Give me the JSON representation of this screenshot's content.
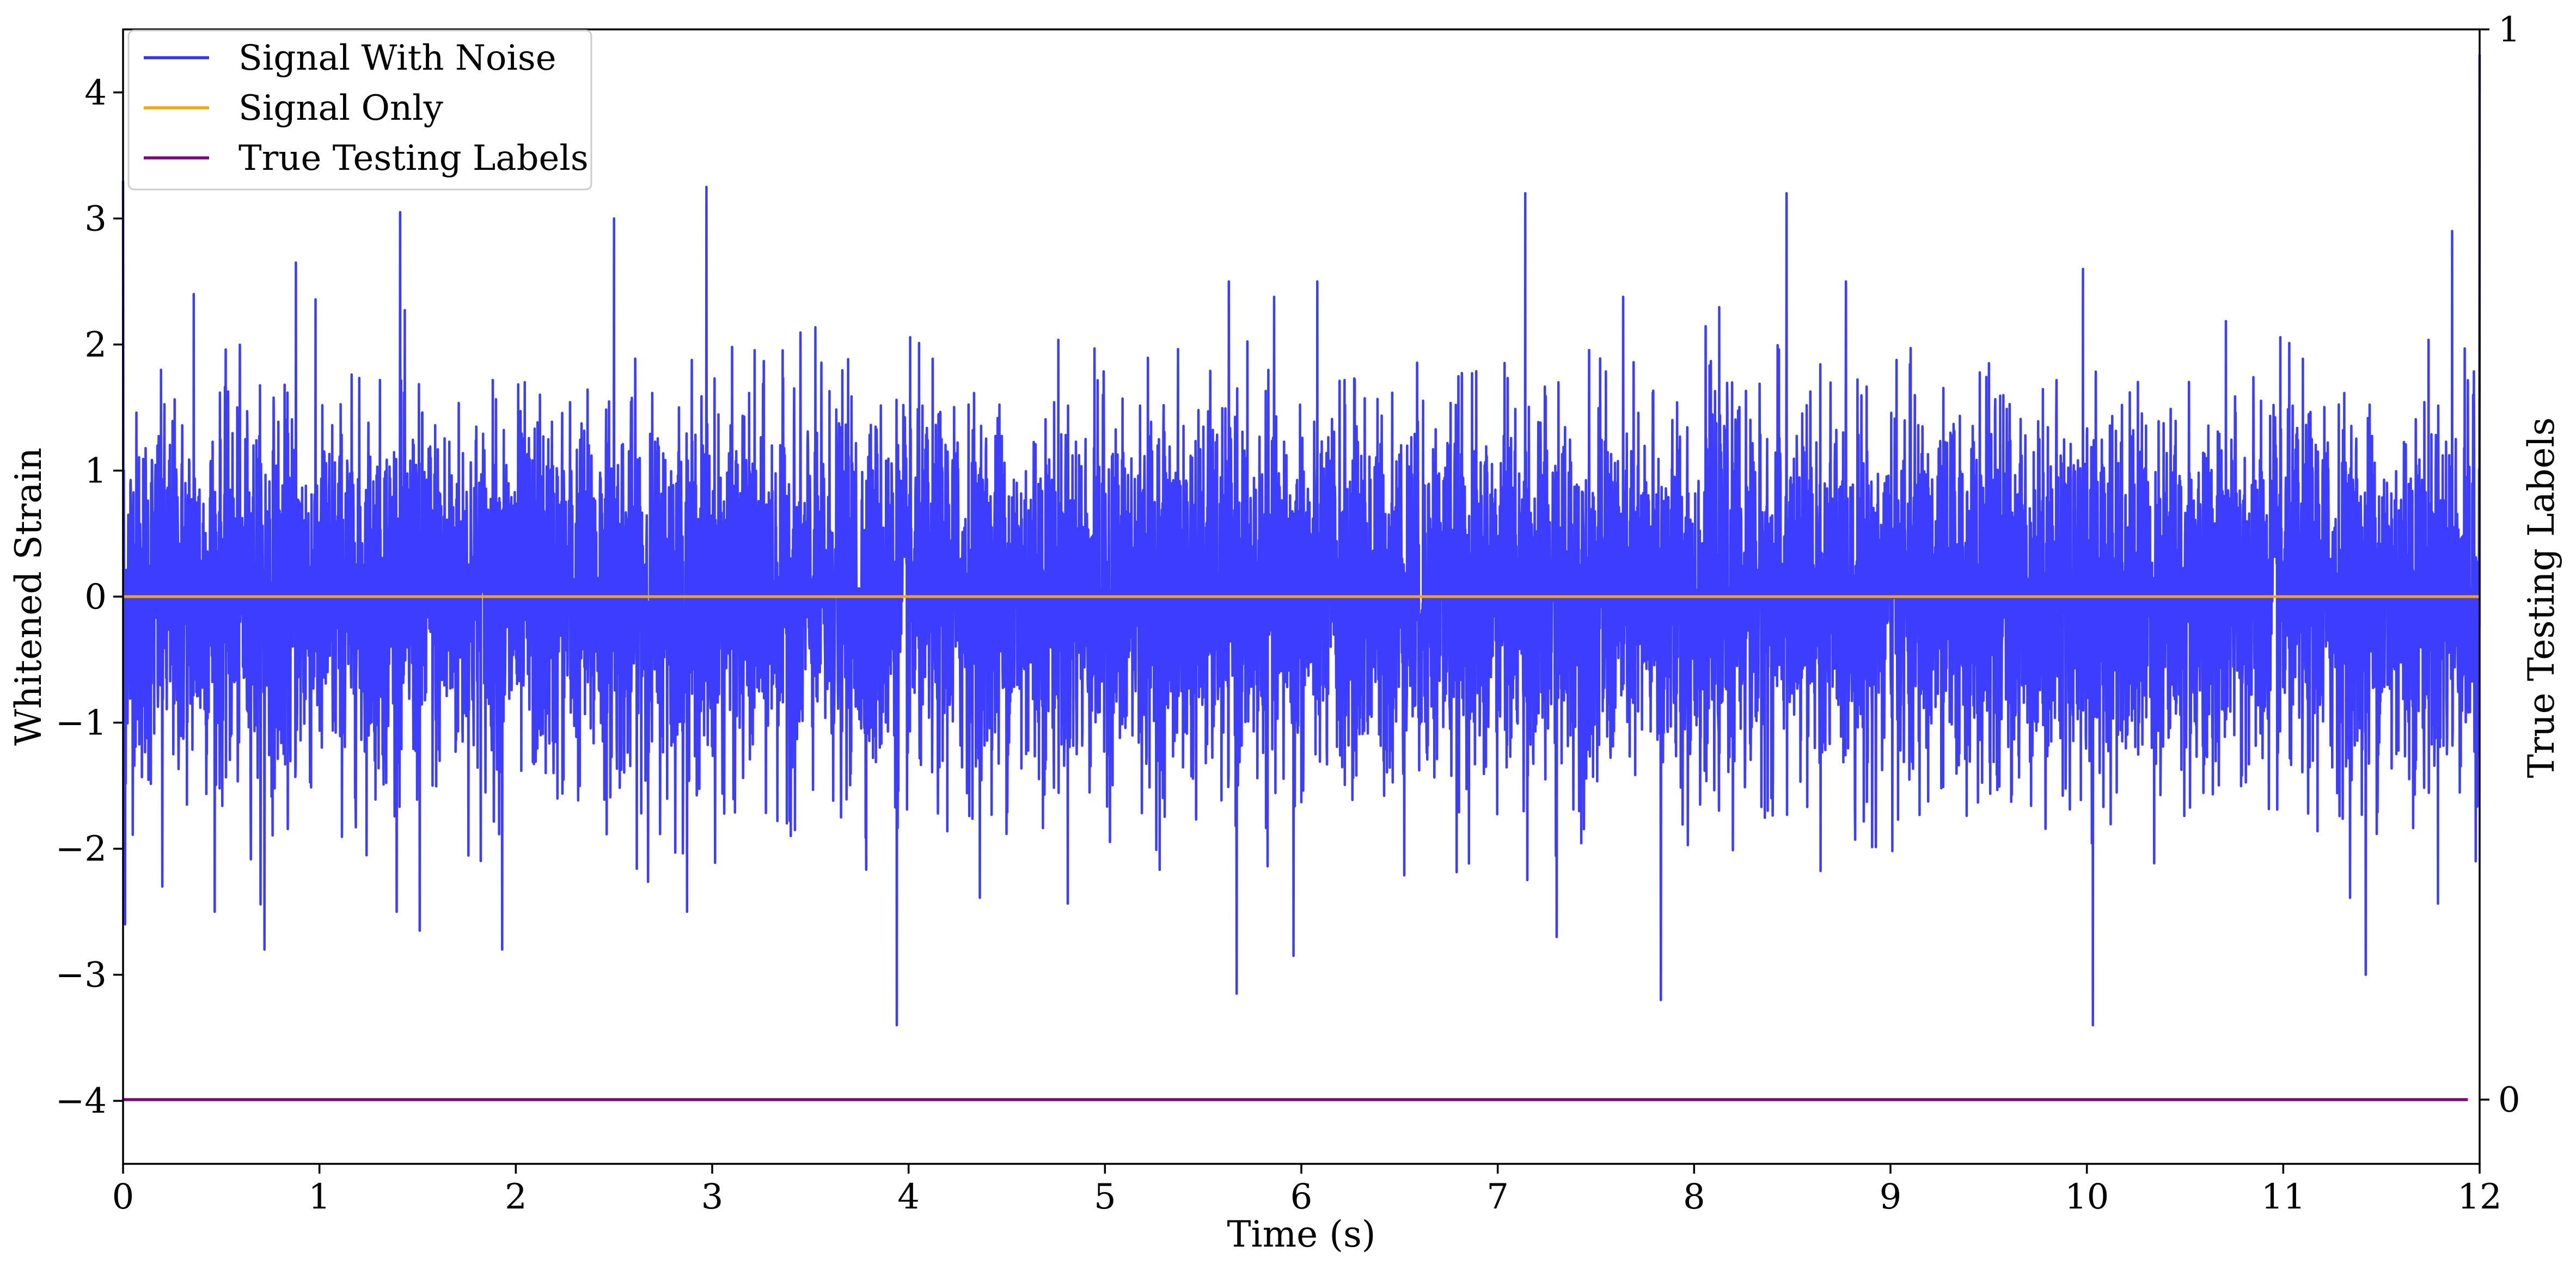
{
  "chart_data": {
    "type": "line",
    "title": "",
    "xlabel": "Time (s)",
    "ylabel": "Whitened Strain",
    "y2label": "True Testing Labels",
    "xlim": [
      0,
      12
    ],
    "ylim": [
      -4.5,
      4.5
    ],
    "y2lim": [
      -0.06,
      1.0
    ],
    "xticks": [
      "0",
      "1",
      "2",
      "3",
      "4",
      "5",
      "6",
      "7",
      "8",
      "9",
      "10",
      "11",
      "12"
    ],
    "yticks": [
      "−4",
      "−3",
      "−2",
      "−1",
      "0",
      "1",
      "2",
      "3",
      "4"
    ],
    "y2ticks": [
      "0",
      "1"
    ],
    "grid": false,
    "legend_position": "top-left",
    "legend": [
      "Signal With Noise",
      "Signal Only",
      "True Testing Labels"
    ],
    "series": [
      {
        "name": "Signal With Noise",
        "color": "#3333ff",
        "axis": "left",
        "description_stats": {
          "typical_range": [
            -1.5,
            1.5
          ],
          "max": 4.3,
          "min": -3.6
        },
        "x": [
          0,
          0.01,
          0.2,
          0.36,
          0.72,
          0.88,
          1.41,
          1.51,
          1.93,
          2.5,
          2.97,
          2.95,
          3.94,
          5.67,
          5.96,
          7.14,
          7.3,
          7.83,
          8.47,
          9.98,
          10.03,
          11.42,
          11.86,
          11.98,
          12.0
        ],
        "values": [
          3.3,
          -2.6,
          -2.3,
          2.4,
          -2.8,
          2.65,
          3.05,
          -2.65,
          -2.8,
          3.0,
          -3.6,
          3.25,
          -3.4,
          -3.15,
          -2.85,
          3.2,
          -2.7,
          -3.2,
          3.2,
          2.6,
          -3.4,
          -3.0,
          2.9,
          -2.1,
          4.3
        ]
      },
      {
        "name": "Signal Only",
        "color": "#ffa500",
        "axis": "left",
        "x": [
          0,
          12
        ],
        "values": [
          0,
          0
        ]
      },
      {
        "name": "True Testing Labels",
        "color": "#800080",
        "axis": "right",
        "x": [
          0,
          11.94
        ],
        "values": [
          0,
          0
        ]
      }
    ]
  }
}
